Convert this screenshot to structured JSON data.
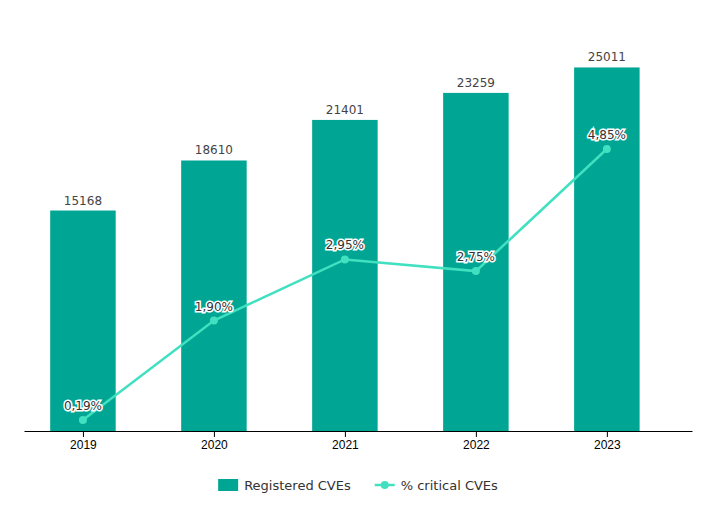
{
  "chart_data": {
    "type": "bar",
    "x": [
      2019,
      2020,
      2021,
      2022,
      2023
    ],
    "xlim": [
      2018.55,
      2023.65
    ],
    "xticks": [
      2019,
      2020,
      2021,
      2022,
      2023
    ],
    "ylim": [
      0,
      28000
    ],
    "y2lim": [
      0,
      7.0
    ],
    "tick_labels": "x",
    "grid": false,
    "legend": "bottom",
    "series": [
      {
        "name": "Registered CVEs",
        "type": "bar",
        "color": "#00A693",
        "values": [
          15168,
          18610,
          21401,
          23259,
          25011
        ],
        "data_labels": true
      },
      {
        "name": "% critical CVEs",
        "type": "line",
        "axis": "y2",
        "color": "#40E0C0",
        "marker": "circle",
        "line_style": "solid",
        "values": [
          0.19,
          1.9,
          2.95,
          2.75,
          4.85
        ],
        "value_labels": [
          "0,19%",
          "1,90%",
          "2,95%",
          "2,75%",
          "4,85%"
        ],
        "data_labels": true
      }
    ]
  }
}
